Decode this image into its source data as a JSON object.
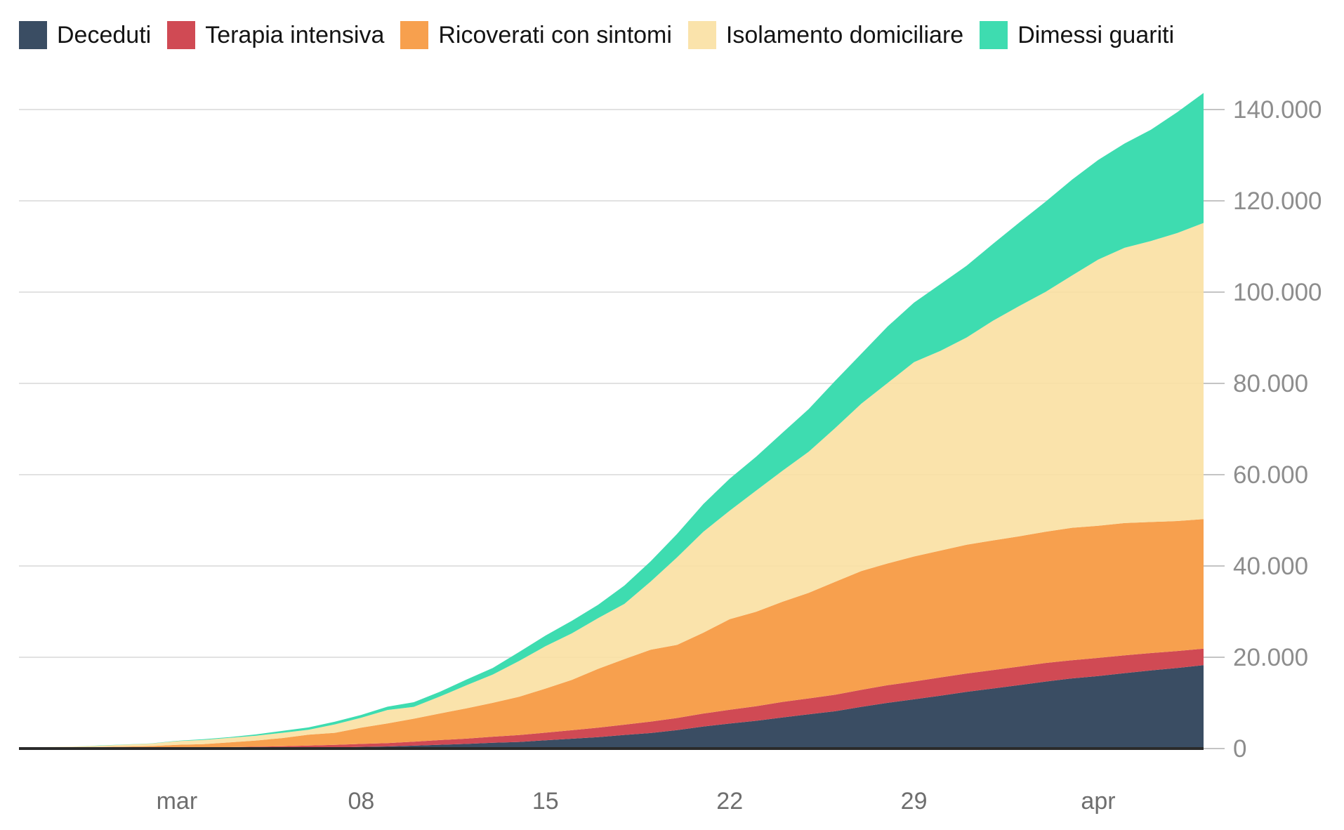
{
  "colors": {
    "background": "#ffffff",
    "grid": "#e2e2e2",
    "baseline": "#2b2b2b",
    "tick": "#c4c4c4",
    "y_label": "#8d8d8d",
    "x_label": "#6e6e6e",
    "legend_text": "#141414"
  },
  "legend": {
    "position": "top",
    "items": [
      {
        "label": "Deceduti",
        "color": "#3a4d63"
      },
      {
        "label": "Terapia intensiva",
        "color": "#d04a54"
      },
      {
        "label": "Ricoverati con sintomi",
        "color": "#f7a04e"
      },
      {
        "label": "Isolamento domiciliare",
        "color": "#fbe4ae"
      },
      {
        "label": "Dimessi guariti",
        "color": "#41dcb0"
      }
    ]
  },
  "chart_data": {
    "type": "area",
    "stacked": true,
    "grid": true,
    "legend_position": "top",
    "title": "",
    "xlabel": "",
    "ylabel": "",
    "ylim": [
      0,
      148000
    ],
    "x": [
      "2020-02-24",
      "2020-02-25",
      "2020-02-26",
      "2020-02-27",
      "2020-02-28",
      "2020-02-29",
      "2020-03-01",
      "2020-03-02",
      "2020-03-03",
      "2020-03-04",
      "2020-03-05",
      "2020-03-06",
      "2020-03-07",
      "2020-03-08",
      "2020-03-09",
      "2020-03-10",
      "2020-03-11",
      "2020-03-12",
      "2020-03-13",
      "2020-03-14",
      "2020-03-15",
      "2020-03-16",
      "2020-03-17",
      "2020-03-18",
      "2020-03-19",
      "2020-03-20",
      "2020-03-21",
      "2020-03-22",
      "2020-03-23",
      "2020-03-24",
      "2020-03-25",
      "2020-03-26",
      "2020-03-27",
      "2020-03-28",
      "2020-03-29",
      "2020-03-30",
      "2020-03-31",
      "2020-04-01",
      "2020-04-02",
      "2020-04-03",
      "2020-04-04",
      "2020-04-05",
      "2020-04-06",
      "2020-04-07",
      "2020-04-08",
      "2020-04-09"
    ],
    "x_ticks": [
      {
        "label": "mar",
        "index": 6
      },
      {
        "label": "08",
        "index": 13
      },
      {
        "label": "15",
        "index": 20
      },
      {
        "label": "22",
        "index": 27
      },
      {
        "label": "29",
        "index": 34
      },
      {
        "label": "apr",
        "index": 41
      }
    ],
    "y_ticks": [
      {
        "label": "0",
        "value": 0
      },
      {
        "label": "20.000",
        "value": 20000
      },
      {
        "label": "40.000",
        "value": 40000
      },
      {
        "label": "60.000",
        "value": 60000
      },
      {
        "label": "80.000",
        "value": 80000
      },
      {
        "label": "100.000",
        "value": 100000
      },
      {
        "label": "120.000",
        "value": 120000
      },
      {
        "label": "140.000",
        "value": 140000
      }
    ],
    "series": [
      {
        "name": "Deceduti",
        "color": "#3a4d63",
        "opacity": 1,
        "values": [
          7,
          10,
          12,
          17,
          21,
          29,
          34,
          52,
          79,
          107,
          148,
          197,
          233,
          366,
          463,
          631,
          827,
          1016,
          1266,
          1441,
          1809,
          2158,
          2503,
          2978,
          3405,
          4032,
          4825,
          5476,
          6077,
          6820,
          7503,
          8165,
          9134,
          10023,
          10779,
          11591,
          12428,
          13155,
          13915,
          14681,
          15362,
          15887,
          16523,
          17127,
          17669,
          18279
        ]
      },
      {
        "name": "Terapia intensiva",
        "color": "#d04a54",
        "opacity": 1,
        "values": [
          26,
          35,
          36,
          56,
          64,
          105,
          140,
          166,
          229,
          295,
          351,
          462,
          567,
          650,
          733,
          877,
          1028,
          1153,
          1328,
          1518,
          1672,
          1851,
          2060,
          2257,
          2498,
          2655,
          2857,
          3009,
          3204,
          3396,
          3489,
          3612,
          3732,
          3856,
          3906,
          3981,
          4023,
          4035,
          4053,
          4068,
          3994,
          3977,
          3898,
          3792,
          3693,
          3605
        ]
      },
      {
        "name": "Ricoverati con sintomi",
        "color": "#f7a04e",
        "opacity": 1,
        "values": [
          101,
          114,
          128,
          248,
          345,
          401,
          639,
          742,
          1034,
          1346,
          1790,
          2394,
          2651,
          3557,
          4316,
          5038,
          5838,
          6650,
          7426,
          8372,
          9663,
          11025,
          12894,
          14363,
          15757,
          16020,
          17708,
          19846,
          20692,
          21937,
          23112,
          24753,
          26029,
          26676,
          27386,
          27795,
          28192,
          28403,
          28540,
          28741,
          29010,
          28949,
          28976,
          28718,
          28485,
          28399
        ]
      },
      {
        "name": "Isolamento domiciliare",
        "color": "#f9df9f",
        "opacity": 0.88,
        "values": [
          94,
          162,
          221,
          284,
          412,
          543,
          798,
          927,
          1000,
          1065,
          1155,
          1060,
          1843,
          2180,
          2936,
          2599,
          3724,
          5036,
          6201,
          7860,
          9268,
          10197,
          11108,
          12090,
          14935,
          19185,
          22116,
          23783,
          26522,
          28697,
          30920,
          33648,
          36653,
          39533,
          42588,
          43752,
          45420,
          48134,
          50456,
          52579,
          55270,
          58320,
          60313,
          61557,
          63084,
          64873
        ]
      },
      {
        "name": "Dimessi guariti",
        "color": "#3edcb0",
        "opacity": 1,
        "values": [
          1,
          1,
          3,
          45,
          46,
          50,
          83,
          149,
          160,
          276,
          414,
          523,
          589,
          622,
          724,
          1004,
          1045,
          1258,
          1439,
          1966,
          2335,
          2749,
          2941,
          4025,
          4440,
          5129,
          6072,
          7024,
          7432,
          8326,
          9362,
          10361,
          10950,
          12384,
          13030,
          14620,
          15729,
          16847,
          18278,
          19758,
          20996,
          21815,
          22837,
          24392,
          26491,
          28470
        ]
      }
    ]
  }
}
